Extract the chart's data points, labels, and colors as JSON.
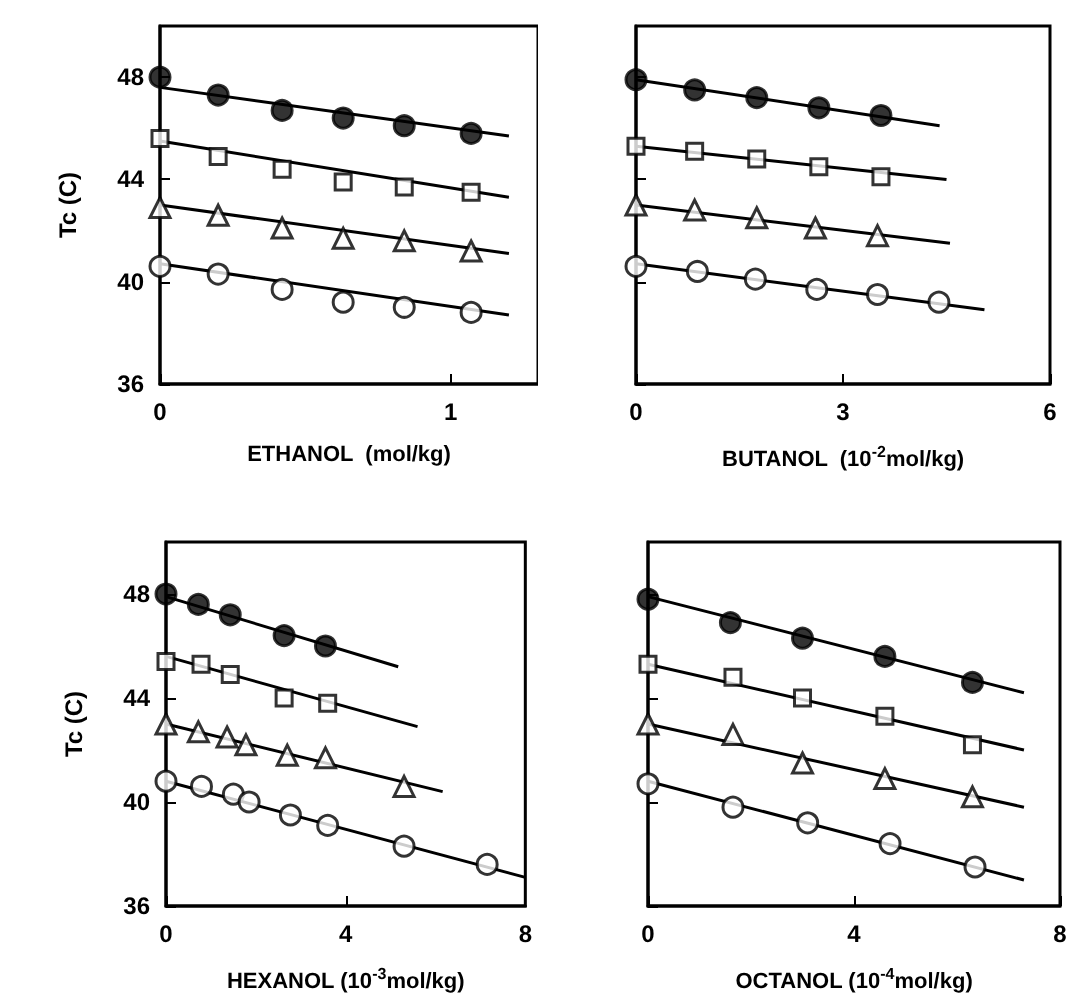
{
  "chart_data": [
    {
      "type": "scatter",
      "xlabel": "ETHANOL  (mol/kg)",
      "ylabel": "Tc (C)",
      "xlim": [
        0,
        1.3
      ],
      "xticks": [
        0,
        1
      ],
      "ylim": [
        36,
        50
      ],
      "yticks": [
        36,
        40,
        44,
        48
      ],
      "series": [
        {
          "color": "#000000",
          "marker": "circle",
          "x": [
            0,
            0.2,
            0.42,
            0.63,
            0.84,
            1.07
          ],
          "values": [
            48.0,
            47.3,
            46.7,
            46.4,
            46.1,
            45.8
          ]
        },
        {
          "color": "#ffffff",
          "marker": "square",
          "x": [
            0,
            0.2,
            0.42,
            0.63,
            0.84,
            1.07
          ],
          "values": [
            45.6,
            44.9,
            44.4,
            43.9,
            43.7,
            43.5
          ]
        },
        {
          "color": "#ffffff",
          "marker": "triangle",
          "x": [
            0,
            0.2,
            0.42,
            0.63,
            0.84,
            1.07
          ],
          "values": [
            42.9,
            42.6,
            42.1,
            41.7,
            41.6,
            41.2
          ]
        },
        {
          "color": "#ffffff",
          "marker": "circle",
          "x": [
            0,
            0.2,
            0.42,
            0.63,
            0.84,
            1.07
          ],
          "values": [
            40.6,
            40.3,
            39.7,
            39.2,
            39.0,
            38.8
          ]
        },
        {
          "type": "line",
          "color": "#000000",
          "marker": "none",
          "line_style": "solid",
          "x": [
            0,
            1.2
          ],
          "values": [
            47.6,
            45.7
          ]
        },
        {
          "type": "line",
          "color": "#000000",
          "marker": "none",
          "line_style": "solid",
          "x": [
            0,
            1.2
          ],
          "values": [
            45.5,
            43.3
          ]
        },
        {
          "type": "line",
          "color": "#000000",
          "marker": "none",
          "line_style": "solid",
          "x": [
            0,
            1.2
          ],
          "values": [
            43.0,
            41.1
          ]
        },
        {
          "type": "line",
          "color": "#000000",
          "marker": "none",
          "line_style": "solid",
          "x": [
            0,
            1.2
          ],
          "values": [
            40.7,
            38.7
          ]
        }
      ]
    },
    {
      "type": "scatter",
      "xlabel": "BUTANOL  (10$^{-2}$mol/kg)",
      "xlim": [
        0,
        6
      ],
      "xticks": [
        0,
        3,
        6
      ],
      "ylim": [
        36,
        50
      ],
      "yticks": [
        36,
        40,
        44,
        48
      ],
      "tick_labels": "x",
      "series": [
        {
          "color": "#000000",
          "marker": "circle",
          "x": [
            0,
            0.85,
            1.75,
            2.65,
            3.55
          ],
          "values": [
            47.9,
            47.5,
            47.2,
            46.8,
            46.5
          ]
        },
        {
          "color": "#ffffff",
          "marker": "square",
          "x": [
            0,
            0.85,
            1.75,
            2.65,
            3.55
          ],
          "values": [
            45.3,
            45.1,
            44.8,
            44.5,
            44.1
          ]
        },
        {
          "color": "#ffffff",
          "marker": "triangle",
          "x": [
            0,
            0.85,
            1.75,
            2.6,
            3.5
          ],
          "values": [
            43.0,
            42.8,
            42.5,
            42.1,
            41.8
          ]
        },
        {
          "color": "#ffffff",
          "marker": "circle",
          "x": [
            0,
            0.89,
            1.73,
            2.62,
            3.5,
            4.39
          ],
          "values": [
            40.6,
            40.4,
            40.1,
            39.7,
            39.5,
            39.2
          ]
        },
        {
          "type": "line",
          "color": "#000000",
          "marker": "none",
          "line_style": "solid",
          "x": [
            0,
            4.4
          ],
          "values": [
            47.9,
            46.1
          ]
        },
        {
          "type": "line",
          "color": "#000000",
          "marker": "none",
          "line_style": "solid",
          "x": [
            0,
            4.5
          ],
          "values": [
            45.3,
            44.0
          ]
        },
        {
          "type": "line",
          "color": "#000000",
          "marker": "none",
          "line_style": "solid",
          "x": [
            0,
            4.55
          ],
          "values": [
            43.0,
            41.5
          ]
        },
        {
          "type": "line",
          "color": "#000000",
          "marker": "none",
          "line_style": "solid",
          "x": [
            0,
            5.05
          ],
          "values": [
            40.7,
            38.9
          ]
        }
      ]
    },
    {
      "type": "scatter",
      "xlabel": "HEXANOL (10$^{-3}$mol/kg)",
      "ylabel": "Tc (C)",
      "xlim": [
        0,
        8
      ],
      "xticks": [
        0,
        4,
        8
      ],
      "ylim": [
        36,
        50
      ],
      "yticks": [
        36,
        40,
        44,
        48
      ],
      "series": [
        {
          "color": "#000000",
          "marker": "circle",
          "x": [
            0,
            0.72,
            1.43,
            2.63,
            3.55
          ],
          "values": [
            48.0,
            47.6,
            47.2,
            46.4,
            46.0
          ]
        },
        {
          "color": "#ffffff",
          "marker": "square",
          "x": [
            0,
            0.78,
            1.43,
            2.63,
            3.6
          ],
          "values": [
            45.4,
            45.3,
            44.9,
            44.0,
            43.8
          ]
        },
        {
          "color": "#ffffff",
          "marker": "triangle",
          "x": [
            0,
            0.72,
            1.36,
            1.78,
            2.7,
            3.55,
            5.3
          ],
          "values": [
            43.0,
            42.7,
            42.5,
            42.2,
            41.8,
            41.7,
            40.6
          ]
        },
        {
          "color": "#ffffff",
          "marker": "circle",
          "x": [
            0,
            0.79,
            1.5,
            1.85,
            2.77,
            3.6,
            5.3,
            7.15
          ],
          "values": [
            40.8,
            40.6,
            40.3,
            40.0,
            39.5,
            39.1,
            38.3,
            37.6
          ]
        },
        {
          "type": "line",
          "color": "#000000",
          "marker": "none",
          "line_style": "solid",
          "x": [
            0,
            5.17
          ],
          "values": [
            47.9,
            45.2
          ]
        },
        {
          "type": "line",
          "color": "#000000",
          "marker": "none",
          "line_style": "solid",
          "x": [
            0,
            5.6
          ],
          "values": [
            45.6,
            42.9
          ]
        },
        {
          "type": "line",
          "color": "#000000",
          "marker": "none",
          "line_style": "solid",
          "x": [
            0,
            6.16
          ],
          "values": [
            43.0,
            40.4
          ]
        },
        {
          "type": "line",
          "color": "#000000",
          "marker": "none",
          "line_style": "solid",
          "x": [
            0,
            8
          ],
          "values": [
            40.8,
            37.1
          ]
        }
      ]
    },
    {
      "type": "scatter",
      "xlabel": "OCTANOL (10$^{-4}$mol/kg)",
      "xlim": [
        0,
        8
      ],
      "xticks": [
        0,
        4,
        8
      ],
      "ylim": [
        36,
        50
      ],
      "yticks": [
        36,
        40,
        44,
        48
      ],
      "tick_labels": "x",
      "series": [
        {
          "color": "#000000",
          "marker": "circle",
          "x": [
            0,
            1.6,
            3.0,
            4.6,
            6.3
          ],
          "values": [
            47.8,
            46.9,
            46.3,
            45.6,
            44.6
          ]
        },
        {
          "color": "#ffffff",
          "marker": "square",
          "x": [
            0,
            1.65,
            3.0,
            4.6,
            6.3
          ],
          "values": [
            45.3,
            44.8,
            44.0,
            43.3,
            42.2
          ]
        },
        {
          "color": "#ffffff",
          "marker": "triangle",
          "x": [
            0,
            1.65,
            3.0,
            4.6,
            6.3
          ],
          "values": [
            43.0,
            42.6,
            41.5,
            40.9,
            40.2
          ]
        },
        {
          "color": "#ffffff",
          "marker": "circle",
          "x": [
            0,
            1.65,
            3.1,
            4.7,
            6.35
          ],
          "values": [
            40.7,
            39.8,
            39.2,
            38.4,
            37.5
          ]
        },
        {
          "type": "line",
          "color": "#000000",
          "marker": "none",
          "line_style": "solid",
          "x": [
            0,
            7.3
          ],
          "values": [
            47.9,
            44.2
          ]
        },
        {
          "type": "line",
          "color": "#000000",
          "marker": "none",
          "line_style": "solid",
          "x": [
            0,
            7.3
          ],
          "values": [
            45.3,
            42.0
          ]
        },
        {
          "type": "line",
          "color": "#000000",
          "marker": "none",
          "line_style": "solid",
          "x": [
            0,
            7.3
          ],
          "values": [
            43.0,
            39.8
          ]
        },
        {
          "type": "line",
          "color": "#000000",
          "marker": "none",
          "line_style": "solid",
          "x": [
            0,
            7.3
          ],
          "values": [
            40.8,
            37.0
          ]
        }
      ]
    }
  ]
}
